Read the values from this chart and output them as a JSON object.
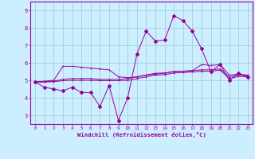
{
  "xlabel": "Windchill (Refroidissement éolien,°C)",
  "background_color": "#cceeff",
  "line_color": "#990099",
  "grid_color": "#99cccc",
  "axis_color": "#990099",
  "xlim": [
    -0.5,
    23.5
  ],
  "ylim": [
    2.5,
    9.5
  ],
  "yticks": [
    3,
    4,
    5,
    6,
    7,
    8,
    9
  ],
  "xticks": [
    0,
    1,
    2,
    3,
    4,
    5,
    6,
    7,
    8,
    9,
    10,
    11,
    12,
    13,
    14,
    15,
    16,
    17,
    18,
    19,
    20,
    21,
    22,
    23
  ],
  "series1": {
    "x": [
      0,
      1,
      2,
      3,
      4,
      5,
      6,
      7,
      8,
      9,
      10,
      11,
      12,
      13,
      14,
      15,
      16,
      17,
      18,
      19,
      20,
      21,
      22,
      23
    ],
    "y": [
      4.9,
      4.6,
      4.5,
      4.4,
      4.6,
      4.3,
      4.3,
      3.5,
      4.7,
      2.7,
      4.0,
      6.5,
      7.8,
      7.25,
      7.3,
      8.7,
      8.4,
      7.8,
      6.8,
      5.5,
      5.9,
      5.0,
      5.4,
      5.2
    ]
  },
  "series2": {
    "x": [
      0,
      1,
      2,
      3,
      4,
      5,
      6,
      7,
      8,
      9,
      10,
      11,
      12,
      13,
      14,
      15,
      16,
      17,
      18,
      19,
      20,
      21,
      22,
      23
    ],
    "y": [
      4.9,
      4.95,
      5.0,
      5.8,
      5.8,
      5.75,
      5.7,
      5.65,
      5.6,
      5.2,
      5.15,
      5.2,
      5.3,
      5.35,
      5.4,
      5.5,
      5.52,
      5.55,
      5.9,
      5.85,
      5.9,
      5.3,
      5.35,
      5.3
    ]
  },
  "series3": {
    "x": [
      0,
      1,
      2,
      3,
      4,
      5,
      6,
      7,
      8,
      9,
      10,
      11,
      12,
      13,
      14,
      15,
      16,
      17,
      18,
      19,
      20,
      21,
      22,
      23
    ],
    "y": [
      4.9,
      4.93,
      4.95,
      5.05,
      5.1,
      5.1,
      5.1,
      5.05,
      5.05,
      5.05,
      5.1,
      5.2,
      5.3,
      5.4,
      5.42,
      5.5,
      5.52,
      5.55,
      5.6,
      5.6,
      5.65,
      5.2,
      5.3,
      5.25
    ]
  },
  "series4": {
    "x": [
      0,
      1,
      2,
      3,
      4,
      5,
      6,
      7,
      8,
      9,
      10,
      11,
      12,
      13,
      14,
      15,
      16,
      17,
      18,
      19,
      20,
      21,
      22,
      23
    ],
    "y": [
      4.9,
      4.9,
      4.92,
      4.98,
      5.0,
      5.0,
      5.0,
      4.98,
      4.98,
      4.98,
      5.0,
      5.1,
      5.2,
      5.3,
      5.32,
      5.42,
      5.44,
      5.48,
      5.52,
      5.52,
      5.58,
      5.1,
      5.22,
      5.2
    ]
  }
}
